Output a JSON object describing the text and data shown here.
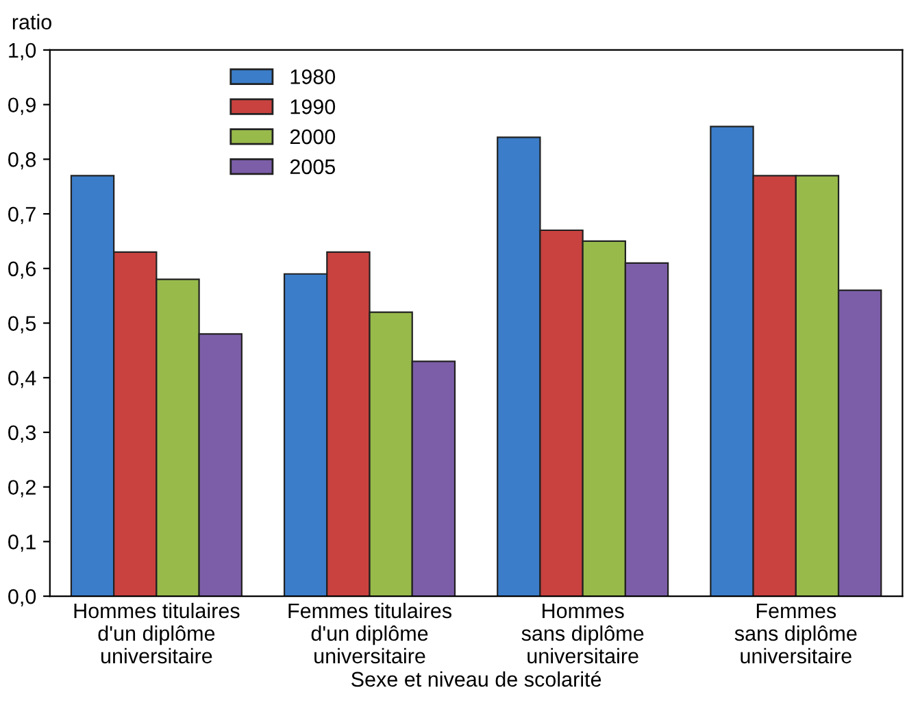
{
  "chart_data": {
    "type": "bar",
    "xlabel": "Sexe et niveau de scolarité",
    "ylabel": "ratio",
    "categories": [
      "Hommes titulaires\nd'un diplôme\nuniversitaire",
      "Femmes titulaires\nd'un diplôme\nuniversitaire",
      "Hommes\nsans diplôme\nuniversitaire",
      "Femmes\nsans diplôme\nuniversitaire"
    ],
    "series": [
      {
        "name": "1980",
        "color": "#3b7dc9",
        "values": [
          0.77,
          0.59,
          0.84,
          0.86
        ]
      },
      {
        "name": "1990",
        "color": "#c9423f",
        "values": [
          0.63,
          0.63,
          0.67,
          0.77
        ]
      },
      {
        "name": "2000",
        "color": "#98ba4b",
        "values": [
          0.58,
          0.52,
          0.65,
          0.77
        ]
      },
      {
        "name": "2005",
        "color": "#7c5ea8",
        "values": [
          0.48,
          0.43,
          0.61,
          0.56
        ]
      }
    ],
    "ylim": [
      0,
      1.0
    ],
    "yticks": [
      {
        "value": 0,
        "label": "0,0"
      },
      {
        "value": 0.1,
        "label": "0,1"
      },
      {
        "value": 0.2,
        "label": "0,2"
      },
      {
        "value": 0.3,
        "label": "0,3"
      },
      {
        "value": 0.4,
        "label": "0,4"
      },
      {
        "value": 0.5,
        "label": "0,5"
      },
      {
        "value": 0.6,
        "label": "0,6"
      },
      {
        "value": 0.7,
        "label": "0,7"
      },
      {
        "value": 0.8,
        "label": "0,8"
      },
      {
        "value": 0.9,
        "label": "0,9"
      },
      {
        "value": 1.0,
        "label": "1,0"
      }
    ],
    "grid": false,
    "legend": "top left"
  }
}
